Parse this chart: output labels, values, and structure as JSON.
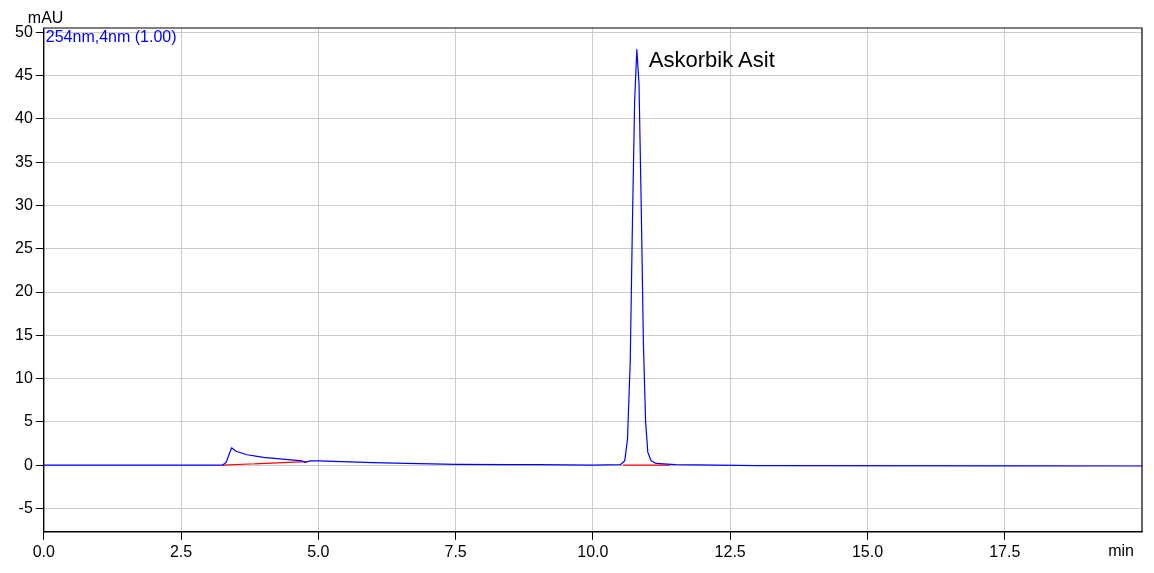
{
  "chart_data": {
    "type": "line",
    "xlabel": "min",
    "ylabel": "mAU",
    "xlim": [
      0,
      20
    ],
    "ylim": [
      -7.7,
      50.5
    ],
    "xticks": [
      {
        "value": 0,
        "label": "0.0"
      },
      {
        "value": 2.5,
        "label": "2.5"
      },
      {
        "value": 5,
        "label": "5.0"
      },
      {
        "value": 7.5,
        "label": "7.5"
      },
      {
        "value": 10,
        "label": "10.0"
      },
      {
        "value": 12.5,
        "label": "12.5"
      },
      {
        "value": 15,
        "label": "15.0"
      },
      {
        "value": 17.5,
        "label": "17.5"
      }
    ],
    "yticks": [
      -5,
      0,
      5,
      10,
      15,
      20,
      25,
      30,
      35,
      40,
      45,
      50
    ],
    "grid": true,
    "legend": "top left",
    "marker": "none",
    "line_style": "solid",
    "annotations": [
      {
        "text": "Askorbik Asit",
        "x": 10.8,
        "y": 48
      }
    ],
    "series": [
      {
        "name": "254nm,4nm (1.00)",
        "color": "#0000ff",
        "x": [
          0,
          2.0,
          3.25,
          3.32,
          3.42,
          3.5,
          3.7,
          4.0,
          4.5,
          4.7,
          4.76,
          4.85,
          5.0,
          6.0,
          6.6,
          7.5,
          9.0,
          10.0,
          10.5,
          10.58,
          10.63,
          10.68,
          10.72,
          10.76,
          10.8,
          10.84,
          10.88,
          10.92,
          10.96,
          11.0,
          11.06,
          11.15,
          11.5,
          13.0,
          20.0
        ],
        "values": [
          0,
          0,
          0,
          0.3,
          2.0,
          1.6,
          1.2,
          0.9,
          0.6,
          0.5,
          0.3,
          0.5,
          0.5,
          0.3,
          0.2,
          0.1,
          0.05,
          0,
          0.05,
          0.5,
          3,
          12,
          28,
          42,
          48,
          44,
          30,
          14,
          5,
          1.5,
          0.5,
          0.2,
          0.05,
          -0.05,
          -0.1
        ]
      },
      {
        "color": "#ff0000",
        "x": [
          3.25,
          4.78,
          4.79,
          10.55,
          11.4
        ],
        "values": [
          0,
          0.4,
          null,
          0,
          0
        ]
      }
    ]
  }
}
